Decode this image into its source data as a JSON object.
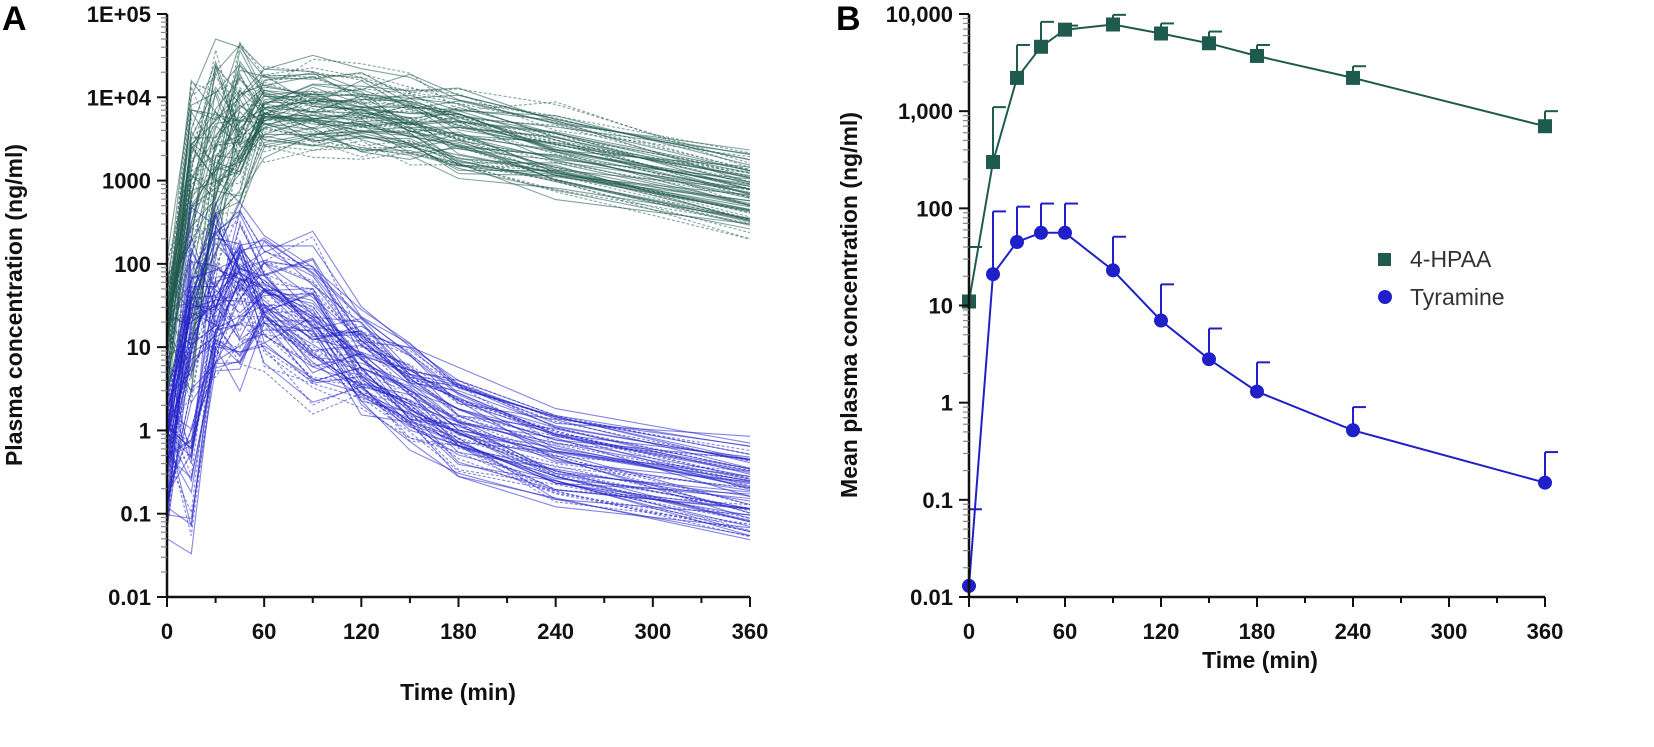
{
  "colors": {
    "hpaa": "#1f5a4f",
    "tyramine": "#2020c8",
    "axis": "#111111"
  },
  "chart_data": [
    {
      "panel": "A",
      "type": "line",
      "yscale": "log",
      "xlabel": "Time (min)",
      "ylabel": "Plasma concentration (ng/ml)",
      "xlim": [
        0,
        360
      ],
      "ylim": [
        0.01,
        100000
      ],
      "xticks": [
        0,
        60,
        120,
        180,
        240,
        300,
        360
      ],
      "xtick_labels": [
        "0",
        "60",
        "120",
        "180",
        "240",
        "300",
        "360"
      ],
      "yticks": [
        0.01,
        0.1,
        1,
        10,
        100,
        1000,
        10000,
        100000
      ],
      "ytick_labels": [
        "0.01",
        "0.1",
        "1",
        "10",
        "100",
        "1000",
        "1E+04",
        "1E+05"
      ],
      "x": [
        0,
        15,
        30,
        45,
        60,
        90,
        120,
        150,
        180,
        240,
        360
      ],
      "series": [
        {
          "name": "4-HPAA",
          "color": "#1f5a4f",
          "subjects": 80,
          "median": [
            12,
            300,
            2200,
            4600,
            7000,
            7800,
            6300,
            5000,
            3700,
            2200,
            700
          ]
        },
        {
          "name": "Tyramine",
          "color": "#2020c8",
          "subjects": 80,
          "median": [
            0.5,
            20,
            45,
            55,
            55,
            23,
            7,
            2.8,
            1.3,
            0.5,
            0.2
          ]
        }
      ]
    },
    {
      "panel": "B",
      "type": "line",
      "yscale": "log",
      "xlabel": "Time (min)",
      "ylabel": "Mean plasma concentration (ng/ml)",
      "xlim": [
        0,
        360
      ],
      "ylim": [
        0.01,
        10000
      ],
      "xticks": [
        0,
        60,
        120,
        180,
        240,
        300,
        360
      ],
      "xtick_labels": [
        "0",
        "60",
        "120",
        "180",
        "240",
        "300",
        "360"
      ],
      "yticks": [
        0.01,
        0.1,
        1,
        10,
        100,
        1000,
        10000
      ],
      "ytick_labels": [
        "0.01",
        "0.1",
        "1",
        "10",
        "100",
        "1,000",
        "10,000"
      ],
      "legend_position": "right",
      "series": [
        {
          "name": "4-HPAA",
          "label": "4-HPAA",
          "marker": "square",
          "color": "#1f5a4f",
          "x": [
            0,
            15,
            30,
            45,
            60,
            90,
            120,
            150,
            180,
            240,
            360
          ],
          "y": [
            11,
            300,
            2200,
            4600,
            6900,
            7800,
            6300,
            5000,
            3700,
            2200,
            700
          ],
          "err_upper": [
            40,
            1100,
            4800,
            8300,
            7600,
            9800,
            8000,
            6600,
            4800,
            2900,
            1000
          ]
        },
        {
          "name": "Tyramine",
          "label": "Tyramine",
          "marker": "circle",
          "color": "#2020c8",
          "x": [
            0,
            15,
            30,
            45,
            60,
            90,
            120,
            150,
            180,
            240,
            360
          ],
          "y": [
            0.013,
            21,
            45,
            56,
            56,
            23,
            7,
            2.8,
            1.3,
            0.52,
            0.15
          ],
          "err_upper": [
            0.08,
            93,
            104,
            112,
            112,
            51,
            16.5,
            5.8,
            2.6,
            0.9,
            0.31
          ]
        }
      ]
    }
  ]
}
